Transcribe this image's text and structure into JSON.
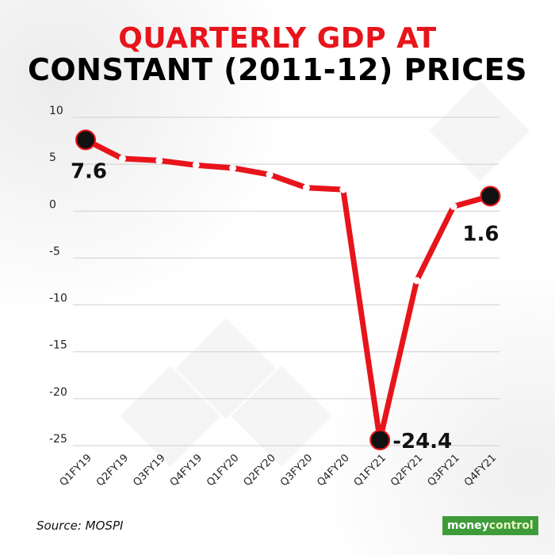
{
  "title": {
    "line1": "QUARTERLY GDP AT",
    "line2": "CONSTANT (2011-12) PRICES"
  },
  "source": "Source: MOSPI",
  "brand": {
    "part1": "money",
    "part2": "control"
  },
  "colors": {
    "line": "#e8141b",
    "marker": "#111111",
    "grid": "#cfcfcf"
  },
  "chart_data": {
    "type": "line",
    "title": "QUARTERLY GDP AT CONSTANT (2011-12) PRICES",
    "categories": [
      "Q1FY19",
      "Q2FY19",
      "Q3FY19",
      "Q4FY19",
      "Q1FY20",
      "Q2FY20",
      "Q3FY20",
      "Q4FY20",
      "Q1FY21",
      "Q2FY21",
      "Q3FY21",
      "Q4FY21"
    ],
    "values": [
      7.6,
      5.6,
      5.4,
      4.9,
      4.6,
      3.9,
      2.5,
      2.3,
      -24.4,
      -7.4,
      0.5,
      1.6
    ],
    "ylim": [
      -25,
      10
    ],
    "yticks": [
      "10",
      "5",
      "0",
      "-5",
      "-10",
      "-15",
      "-20",
      "-25"
    ],
    "grid": true,
    "labeled_points": [
      {
        "index": 0,
        "label": "7.6"
      },
      {
        "index": 8,
        "label": "-24.4"
      },
      {
        "index": 11,
        "label": "1.6"
      }
    ]
  }
}
